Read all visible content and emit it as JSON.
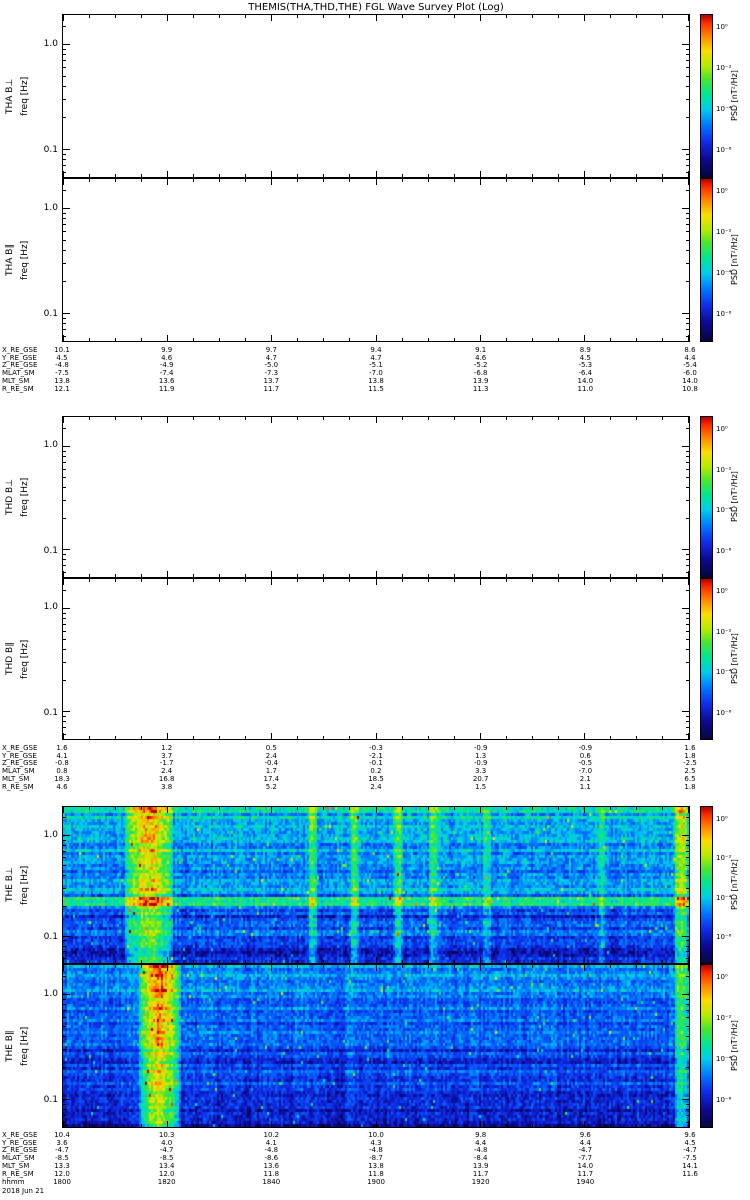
{
  "title": "THEMIS(THA,THD,THE) FGL Wave Survey Plot (Log)",
  "freq_label": "freq [Hz]",
  "freq_ticks": [
    "1.0",
    "0.1"
  ],
  "colorbar": {
    "label": "PSD [nT²/Hz]",
    "ticks": [
      "10⁰",
      "10⁻²",
      "10⁻⁴",
      "10⁻⁶"
    ]
  },
  "ephemeris": [
    {
      "sc": "THA",
      "rows": [
        {
          "label": "X_RE_GSE",
          "values": [
            "10.1",
            "9.9",
            "9.7",
            "9.4",
            "9.1",
            "8.9",
            "8.6"
          ]
        },
        {
          "label": "Y_RE_GSE",
          "values": [
            "4.5",
            "4.6",
            "4.7",
            "4.7",
            "4.6",
            "4.5",
            "4.4"
          ]
        },
        {
          "label": "Z_RE_GSE",
          "values": [
            "-4.8",
            "-4.9",
            "-5.0",
            "-5.1",
            "-5.2",
            "-5.3",
            "-5.4"
          ]
        },
        {
          "label": "MLAT_SM",
          "values": [
            "-7.5",
            "-7.4",
            "-7.3",
            "-7.0",
            "-6.8",
            "-6.4",
            "-6.0"
          ]
        },
        {
          "label": "MLT_SM",
          "values": [
            "13.8",
            "13.6",
            "13.7",
            "13.8",
            "13.9",
            "14.0",
            "14.0"
          ]
        },
        {
          "label": "R_RE_SM",
          "values": [
            "12.1",
            "11.9",
            "11.7",
            "11.5",
            "11.3",
            "11.0",
            "10.8"
          ]
        }
      ]
    },
    {
      "sc": "THD",
      "rows": [
        {
          "label": "X_RE_GSE",
          "values": [
            "1.6",
            "1.2",
            "0.5",
            "-0.3",
            "-0.9",
            "-0.9",
            "1.6"
          ]
        },
        {
          "label": "Y_RE_GSE",
          "values": [
            "4.1",
            "3.7",
            "2.4",
            "-2.1",
            "1.3",
            "0.6",
            "1.8"
          ]
        },
        {
          "label": "Z_RE_GSE",
          "values": [
            "-0.8",
            "-1.7",
            "-0.4",
            "-0.1",
            "-0.9",
            "-0.5",
            "-2.5"
          ]
        },
        {
          "label": "MLAT_SM",
          "values": [
            "0.8",
            "2.4",
            "1.7",
            "0.2",
            "3.3",
            "-7.0",
            "2.5"
          ]
        },
        {
          "label": "MLT_SM",
          "values": [
            "18.3",
            "16.8",
            "17.4",
            "18.5",
            "20.7",
            "2.1",
            "6.5"
          ]
        },
        {
          "label": "R_RE_SM",
          "values": [
            "4.6",
            "3.8",
            "5.2",
            "2.4",
            "1.5",
            "1.1",
            "1.8"
          ]
        }
      ]
    },
    {
      "sc": "THE",
      "rows": [
        {
          "label": "X_RE_GSE",
          "values": [
            "10.4",
            "10.3",
            "10.2",
            "10.0",
            "9.8",
            "9.6",
            "9.6"
          ]
        },
        {
          "label": "Y_RE_GSE",
          "values": [
            "3.6",
            "4.0",
            "4.1",
            "4.3",
            "4.4",
            "4.4",
            "4.5"
          ]
        },
        {
          "label": "Z_RE_GSE",
          "values": [
            "-4.7",
            "-4.7",
            "-4.8",
            "-4.8",
            "-4.8",
            "-4.7",
            "-4.7"
          ]
        },
        {
          "label": "MLAT_SM",
          "values": [
            "-8.5",
            "-8.5",
            "-8.6",
            "-8.7",
            "-8.4",
            "-7.7",
            "-7.5"
          ]
        },
        {
          "label": "MLT_SM",
          "values": [
            "13.3",
            "13.4",
            "13.6",
            "13.8",
            "13.9",
            "14.0",
            "14.1"
          ]
        },
        {
          "label": "R_RE_SM",
          "values": [
            "12.0",
            "12.0",
            "11.8",
            "11.8",
            "11.7",
            "11.7",
            "11.6"
          ]
        }
      ]
    }
  ],
  "time_axis": {
    "label": "hhmm",
    "ticks": [
      "1800",
      "1820",
      "1840",
      "1900",
      "1920",
      "1940"
    ],
    "date": "2018 Jun 21"
  },
  "chart_data": {
    "type": "heatmap",
    "title": "THEMIS(THA,THD,THE) FGL Wave Survey Plot (Log)",
    "x": {
      "label": "hhmm",
      "date": "2018 Jun 21",
      "ticks": [
        "1800",
        "1820",
        "1840",
        "1900",
        "1920",
        "1940"
      ],
      "range_end": "2000"
    },
    "y": {
      "label": "freq [Hz]",
      "scale": "log",
      "range_hz": [
        0.055,
        1.9
      ],
      "ticks": [
        "1.0",
        "0.1"
      ]
    },
    "color": {
      "label": "PSD [nT²/Hz]",
      "scale": "log",
      "ticks": [
        "10⁰",
        "10⁻²",
        "10⁻⁴",
        "10⁻⁶"
      ],
      "colormap": "rainbow"
    },
    "panels": [
      {
        "name": "THA B⊥",
        "has_data": false
      },
      {
        "name": "THA B∥",
        "has_data": false
      },
      {
        "name": "THD B⊥",
        "has_data": false
      },
      {
        "name": "THD B∥",
        "has_data": false
      },
      {
        "name": "THE B⊥",
        "has_data": true,
        "features": {
          "seed": 42,
          "base_top": 0.46,
          "base_bottom": 0.3,
          "noise": 0.1,
          "row_noise": 0.09,
          "col_noise": 0.05,
          "spike_prob": 0.01,
          "spike_delta": 0.32,
          "h_bands": [
            {
              "y0": 0.3,
              "y1": 0.42,
              "delta": -0.07
            },
            {
              "y0": 0.58,
              "y1": 0.645,
              "delta": 0.16
            },
            {
              "y0": 0.66,
              "y1": 0.76,
              "delta": -0.11
            },
            {
              "y0": 0.84,
              "y1": 0.92,
              "delta": -0.09
            },
            {
              "y0": 0.92,
              "y1": 1.01,
              "delta": -0.15
            }
          ],
          "v_stripes": [
            {
              "x0": 0.098,
              "x1": 0.175,
              "delta": 0.42
            },
            {
              "x0": 0.392,
              "x1": 0.406,
              "delta": 0.24
            },
            {
              "x0": 0.458,
              "x1": 0.472,
              "delta": 0.26
            },
            {
              "x0": 0.528,
              "x1": 0.543,
              "delta": 0.28
            },
            {
              "x0": 0.585,
              "x1": 0.6,
              "delta": 0.22
            },
            {
              "x0": 0.672,
              "x1": 0.684,
              "delta": 0.15
            },
            {
              "x0": 0.856,
              "x1": 0.868,
              "delta": 0.13
            },
            {
              "x0": 0.978,
              "x1": 1.001,
              "delta": 0.36
            }
          ]
        }
      },
      {
        "name": "THE B∥",
        "has_data": true,
        "features": {
          "seed": 7,
          "base_top": 0.34,
          "base_bottom": 0.235,
          "noise": 0.095,
          "row_noise": 0.07,
          "col_noise": 0.05,
          "spike_prob": 0.008,
          "spike_delta": 0.33,
          "h_bands": [
            {
              "y0": 0.0,
              "y1": 0.16,
              "delta": 0.04
            },
            {
              "y0": 0.52,
              "y1": 0.62,
              "delta": -0.05
            },
            {
              "y0": 0.78,
              "y1": 0.92,
              "delta": -0.07
            },
            {
              "y0": 0.92,
              "y1": 1.01,
              "delta": -0.12
            }
          ],
          "v_stripes": [
            {
              "x0": 0.118,
              "x1": 0.188,
              "delta": 0.55
            },
            {
              "x0": 0.455,
              "x1": 0.465,
              "delta": 0.1
            },
            {
              "x0": 0.978,
              "x1": 1.001,
              "delta": 0.33
            }
          ]
        }
      }
    ]
  }
}
